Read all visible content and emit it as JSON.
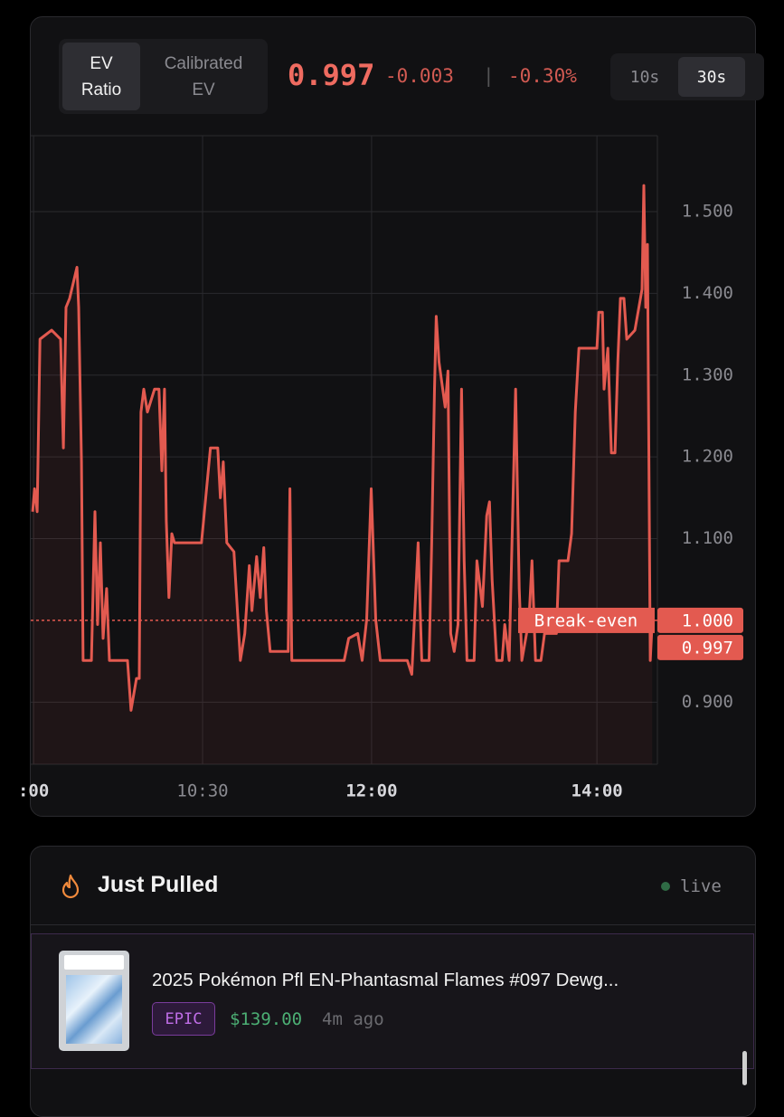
{
  "header": {
    "tabs": [
      "EV Ratio",
      "Calibrated EV"
    ],
    "value": "0.997",
    "change": "-0.003",
    "separator": "|",
    "change_pct": "-0.30%",
    "intervals": [
      "10s",
      "30s"
    ]
  },
  "chart_data": {
    "type": "line",
    "color": "#e35a50",
    "x": [
      539.5,
      540.5,
      541.9,
      543.4,
      549.6,
      554.4,
      555.9,
      557.3,
      559.2,
      563.1,
      564.0,
      565.5,
      566.4,
      570.8,
      572.7,
      574.1,
      575.6,
      577.0,
      578.9,
      580.4,
      590.0,
      591.9,
      594.8,
      596.3,
      597.2,
      598.7,
      600.6,
      604.4,
      606.8,
      608.3,
      609.7,
      610.7,
      612.1,
      613.6,
      615.0,
      629.4,
      634.2,
      638.1,
      639.5,
      641.0,
      642.9,
      646.7,
      650.1,
      652.5,
      654.9,
      656.3,
      658.8,
      660.7,
      662.6,
      664.0,
      666.0,
      675.6,
      676.5,
      677.5,
      705.4,
      707.8,
      712.6,
      715.0,
      717.4,
      719.8,
      722.2,
      724.6,
      739.0,
      741.4,
      744.8,
      746.7,
      750.6,
      752.0,
      753.5,
      754.4,
      755.9,
      759.2,
      760.7,
      762.1,
      764.0,
      766.0,
      767.9,
      769.3,
      770.8,
      774.6,
      776.1,
      779.0,
      781.3,
      782.8,
      784.2,
      786.6,
      789.5,
      790.9,
      793.3,
      796.7,
      798.6,
      800.0,
      803.8,
      805.4,
      807.3,
      810.2,
      812.1,
      818.4,
      819.8,
      824.6,
      826.5,
      828.5,
      830.4,
      840.0,
      841.0,
      842.9,
      843.8,
      845.8,
      847.7,
      849.6,
      851.1,
      852.5,
      854.4,
      855.9,
      860.2,
      864.0,
      865.0,
      866.0,
      866.9,
      868.4,
      869.4
    ],
    "values": [
      1.133,
      1.161,
      1.133,
      1.344,
      1.355,
      1.344,
      1.211,
      1.383,
      1.394,
      1.432,
      1.383,
      1.194,
      0.951,
      0.951,
      1.133,
      0.995,
      1.095,
      0.978,
      1.039,
      0.951,
      0.951,
      0.89,
      0.929,
      0.929,
      1.255,
      1.283,
      1.255,
      1.283,
      1.283,
      1.183,
      1.283,
      1.122,
      1.028,
      1.106,
      1.095,
      1.095,
      1.211,
      1.211,
      1.15,
      1.194,
      1.095,
      1.084,
      0.951,
      0.984,
      1.067,
      1.012,
      1.078,
      1.028,
      1.089,
      1.012,
      0.962,
      0.962,
      1.161,
      0.951,
      0.951,
      0.978,
      0.984,
      0.951,
      1.001,
      1.161,
      1.001,
      0.951,
      0.951,
      0.934,
      1.095,
      0.951,
      0.951,
      1.095,
      1.283,
      1.372,
      1.316,
      1.261,
      1.305,
      0.984,
      0.962,
      0.995,
      1.283,
      1.073,
      0.951,
      0.951,
      1.073,
      1.017,
      1.128,
      1.145,
      1.05,
      0.951,
      0.951,
      0.995,
      0.951,
      1.283,
      1.039,
      0.951,
      1.001,
      1.073,
      0.951,
      0.951,
      0.984,
      0.984,
      1.073,
      1.073,
      1.106,
      1.255,
      1.333,
      1.333,
      1.377,
      1.377,
      1.283,
      1.333,
      1.205,
      1.205,
      1.316,
      1.394,
      1.394,
      1.344,
      1.355,
      1.405,
      1.532,
      1.383,
      1.46,
      0.951,
      0.997
    ],
    "xlim": [
      538.5,
      872.2
    ],
    "xticks": [
      {
        "value": 540,
        "label": ":00"
      },
      {
        "value": 630,
        "label": "10:30"
      },
      {
        "value": 720,
        "label": "12:00"
      },
      {
        "value": 840,
        "label": "14:00"
      }
    ],
    "ylim": [
      0.824,
      1.593
    ],
    "yticks": [
      {
        "value": 0.9,
        "label": "0.900"
      },
      {
        "value": 1.1,
        "label": "1.100"
      },
      {
        "value": 1.2,
        "label": "1.200"
      },
      {
        "value": 1.3,
        "label": "1.300"
      },
      {
        "value": 1.4,
        "label": "1.400"
      },
      {
        "value": 1.5,
        "label": "1.500"
      }
    ],
    "grid": true,
    "reference_line": {
      "value": 1,
      "label": "1.000",
      "text": "Break-even"
    },
    "current": {
      "value": 0.997,
      "label": "0.997"
    }
  },
  "feed": {
    "title": "Just Pulled",
    "status": "live",
    "items": [
      {
        "title": "2025 Pokémon Pfl EN-Phantasmal Flames #097 Dewg...",
        "rarity": "EPIC",
        "price": "$139.00",
        "time": "4m ago"
      }
    ]
  }
}
